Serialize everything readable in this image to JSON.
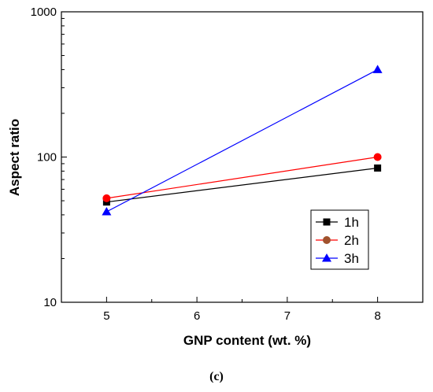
{
  "caption": "(c)",
  "chart_data": {
    "type": "line",
    "title": "",
    "xlabel": "GNP content (wt. %)",
    "ylabel": "Aspect ratio",
    "x": [
      5,
      8
    ],
    "xlim": [
      4.5,
      8.5
    ],
    "ylim": [
      10,
      1000
    ],
    "yscale": "log",
    "xticks": [
      5,
      6,
      7,
      8
    ],
    "yticks": [
      10,
      100,
      1000
    ],
    "grid": false,
    "legend_position": "center-right",
    "series": [
      {
        "name": "1h",
        "values": [
          49,
          84
        ],
        "color": "#000000",
        "marker": "square"
      },
      {
        "name": "2h",
        "values": [
          52,
          100
        ],
        "color": "#ff0000",
        "marker": "circle",
        "legend_marker_color": "#a0522d"
      },
      {
        "name": "3h",
        "values": [
          42,
          400
        ],
        "color": "#0000ff",
        "marker": "triangle"
      }
    ]
  }
}
